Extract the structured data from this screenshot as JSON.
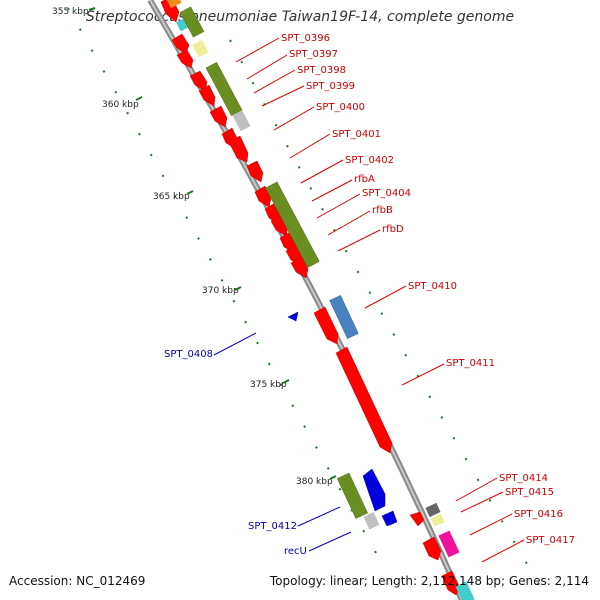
{
  "title": "Streptococcus pneumoniae Taiwan19F-14, complete genome",
  "accession": "Accession: NC_012469",
  "topology": "Topology: linear; Length: 2,112,148 bp; Genes: 2,114",
  "scale_labels": [
    "355 kbp",
    "360 kbp",
    "365 kbp",
    "370 kbp",
    "375 kbp",
    "380 kbp"
  ],
  "gene_labels_forward": [
    "SPT_0396",
    "SPT_0397",
    "SPT_0398",
    "SPT_0399",
    "SPT_0400",
    "SPT_0401",
    "SPT_0402",
    "rfbA",
    "SPT_0404",
    "rfbB",
    "rfbD",
    "SPT_0410",
    "SPT_0411",
    "SPT_0414",
    "SPT_0415",
    "SPT_0416",
    "SPT_0417"
  ],
  "gene_labels_reverse": [
    "SPT_0408",
    "SPT_0412",
    "recU"
  ],
  "colors": {
    "forward_gene": "#ff0000",
    "reverse_gene": "#0000dd",
    "forward_label": "#cc0000",
    "reverse_label": "#0000aa",
    "cds_green": "#6b8e23",
    "backbone": "#888888",
    "scale_ticks": "#1a7a1a"
  }
}
